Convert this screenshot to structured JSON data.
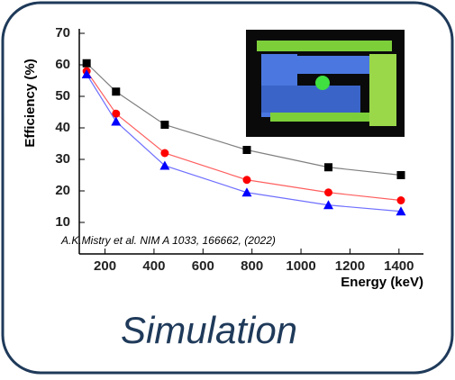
{
  "chart_data": {
    "type": "line",
    "x_label": "Energy (keV)",
    "y_label": "Efficiency (%)",
    "annotation": "A.K.Mistry et al. NIM A 1033, 166662, (2022)",
    "x": [
      125,
      245,
      444,
      779,
      1112,
      1408
    ],
    "series": [
      {
        "color": "#000000",
        "line_color": "#808080",
        "marker": "square",
        "values": [
          60.5,
          51.5,
          41,
          33,
          27.5,
          25
        ]
      },
      {
        "color": "#ff0000",
        "line_color": "#ff6060",
        "marker": "circle",
        "values": [
          58,
          44.5,
          32,
          23.5,
          19.5,
          17
        ]
      },
      {
        "color": "#0000ff",
        "line_color": "#7070ff",
        "marker": "triangle",
        "values": [
          57,
          42,
          28,
          19.5,
          15.5,
          13.5
        ]
      }
    ],
    "xlim": [
      95,
      1500
    ],
    "xticks": [
      200,
      400,
      600,
      800,
      1000,
      1200,
      1400
    ],
    "ylim": [
      0,
      70
    ],
    "yticks": [
      10,
      20,
      30,
      40,
      50,
      60,
      70
    ]
  },
  "caption": "Simulation"
}
